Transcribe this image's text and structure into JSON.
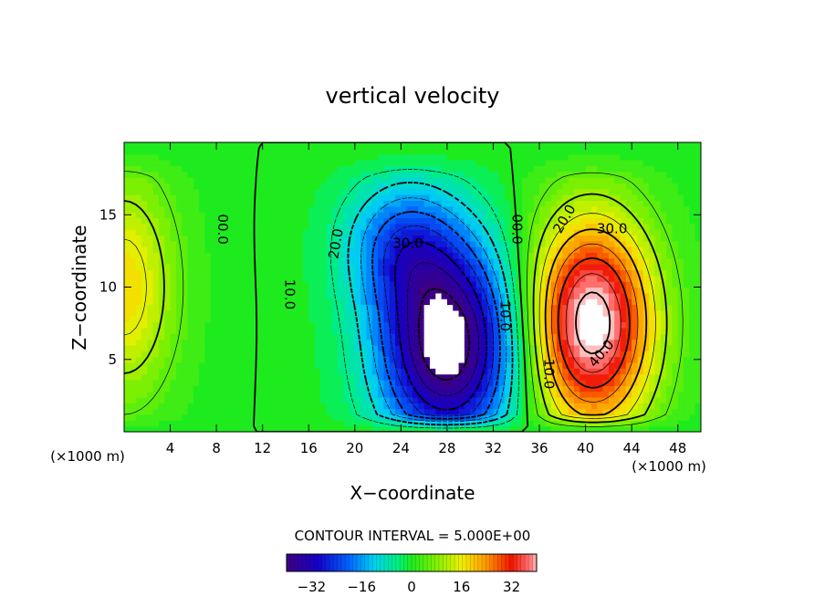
{
  "chart_data": {
    "type": "heatmap",
    "title": "vertical velocity",
    "xlabel": "X−coordinate",
    "ylabel": "Z−coordinate",
    "x_unit_left": "(×1000 m)",
    "x_unit_right": "(×1000 m)",
    "xlim": [
      0,
      50
    ],
    "ylim": [
      0,
      20
    ],
    "x_ticks": [
      4,
      8,
      12,
      16,
      20,
      24,
      28,
      32,
      36,
      40,
      44,
      48
    ],
    "y_ticks": [
      5,
      10,
      15
    ],
    "x_tick_labels": [
      "4",
      "8",
      "12",
      "16",
      "20",
      "24",
      "28",
      "32",
      "36",
      "40",
      "44",
      "48"
    ],
    "y_tick_labels": [
      "5",
      "10",
      "15"
    ],
    "contour_interval_text": "CONTOUR INTERVAL = 5.000E+00",
    "colorbar": {
      "range": [
        -40,
        40
      ],
      "tick_values": [
        -32,
        -16,
        0,
        16,
        32
      ],
      "tick_labels": [
        "−32",
        "−16",
        "0",
        "16",
        "32"
      ]
    },
    "contour_labels": [
      {
        "text": "00.0",
        "x": 8.5,
        "y": 14.0,
        "rotate": 90
      },
      {
        "text": "00.0",
        "x": 34.0,
        "y": 14.0,
        "rotate": 90
      },
      {
        "text": "10.0",
        "x": 14.3,
        "y": 9.5,
        "rotate": 90
      },
      {
        "text": "20.0",
        "x": 18.4,
        "y": 13.0,
        "rotate": -80
      },
      {
        "text": "30.0",
        "x": 24.6,
        "y": 13.0,
        "rotate": 0
      },
      {
        "text": "10.0",
        "x": 33.0,
        "y": 8.0,
        "rotate": 90
      },
      {
        "text": "10.0",
        "x": 36.8,
        "y": 4.0,
        "rotate": 90
      },
      {
        "text": "20.0",
        "x": 38.2,
        "y": 14.7,
        "rotate": -60
      },
      {
        "text": "30.0",
        "x": 42.3,
        "y": 14.0,
        "rotate": 0
      },
      {
        "text": "40.0",
        "x": 41.4,
        "y": 5.4,
        "rotate": -50
      }
    ],
    "features": {
      "updraft": {
        "peak": 44,
        "center": [
          40.5,
          7.5
        ],
        "sx": 3.8,
        "sy": 5.2
      },
      "downdraft": {
        "peak": -45,
        "center": [
          28.0,
          6.0
        ],
        "sx": 4.2,
        "sy": 5.0
      },
      "downdraft_tail": {
        "peak": -18,
        "center": [
          24.0,
          13.0
        ],
        "sx": 3.5,
        "sy": 3.2
      },
      "left_edge_updraft": {
        "peak": 18,
        "center": [
          0.0,
          10.0
        ],
        "sx": 3.2,
        "sy": 5.5
      }
    }
  }
}
